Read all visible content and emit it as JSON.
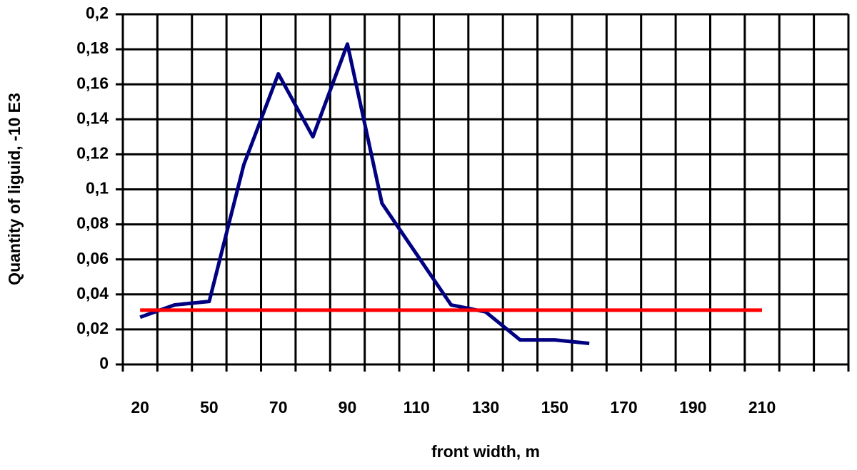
{
  "chart_data": {
    "type": "line",
    "x_label": "front width, m",
    "y_label": "Quantity of liguid, -10 E3",
    "categories": [
      "20",
      null,
      "50",
      null,
      "70",
      null,
      "90",
      null,
      "110",
      null,
      "130",
      null,
      "150",
      null,
      "170",
      null,
      "190",
      null,
      "210",
      null,
      null
    ],
    "series": [
      {
        "color": "#000080",
        "values": [
          0.027,
          0.034,
          0.036,
          0.114,
          0.166,
          0.13,
          0.183,
          0.092,
          0.063,
          0.034,
          0.03,
          0.014,
          0.014,
          0.012,
          null,
          null,
          null,
          null,
          null,
          null,
          null
        ]
      },
      {
        "color": "#ff0000",
        "values": [
          0.031,
          0.031,
          0.031,
          0.031,
          0.031,
          0.031,
          0.031,
          0.031,
          0.031,
          0.031,
          0.031,
          0.031,
          0.031,
          0.031,
          0.031,
          0.031,
          0.031,
          0.031,
          0.031,
          null,
          null
        ]
      }
    ],
    "ylim": [
      0,
      0.2
    ],
    "yticks": [
      0,
      {
        "value": 0.02,
        "label": "0,02"
      },
      {
        "value": 0.04,
        "label": "0,04"
      },
      {
        "value": 0.06,
        "label": "0,06"
      },
      {
        "value": 0.08,
        "label": "0,08"
      },
      {
        "value": 0.1,
        "label": "0,1"
      },
      {
        "value": 0.12,
        "label": "0,12"
      },
      {
        "value": 0.14,
        "label": "0,14"
      },
      {
        "value": 0.16,
        "label": "0,16"
      },
      {
        "value": 0.18,
        "label": "0,18"
      },
      {
        "value": 0.2,
        "label": "0,2"
      }
    ],
    "grid": true
  }
}
